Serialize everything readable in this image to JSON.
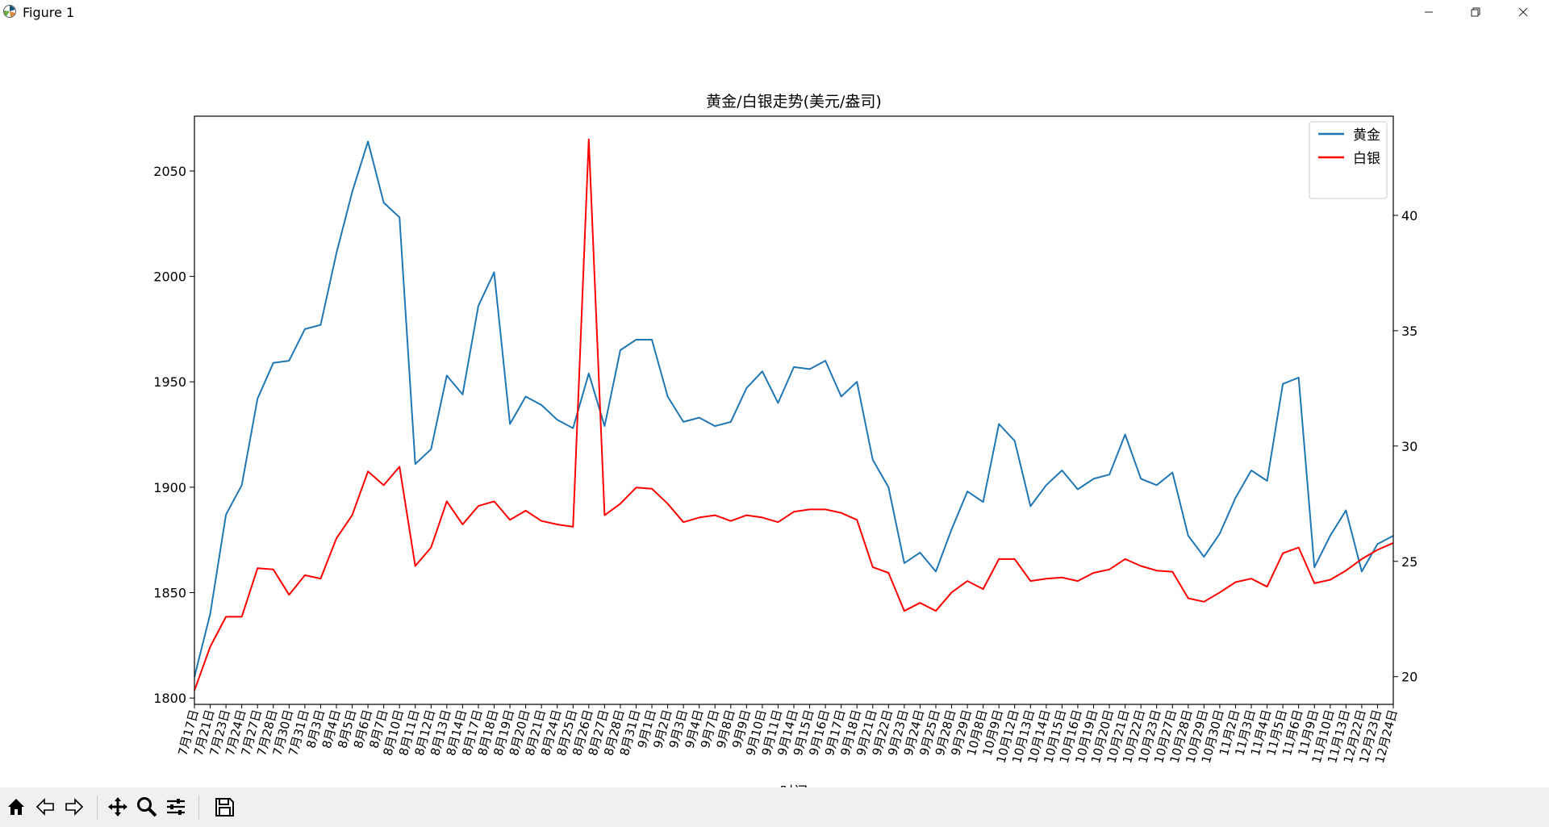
{
  "window": {
    "title": "Figure 1"
  },
  "toolbar": {
    "icons": [
      "home-icon",
      "back-arrow-icon",
      "forward-arrow-icon",
      "pan-icon",
      "zoom-icon",
      "configure-subplots-icon",
      "save-icon"
    ]
  },
  "chart_data": {
    "type": "line",
    "title": "黄金/白银走势(美元/盎司)",
    "xlabel": "时间",
    "ylabel": "",
    "categories": [
      "7月17日",
      "7月21日",
      "7月23日",
      "7月24日",
      "7月27日",
      "7月28日",
      "7月30日",
      "7月31日",
      "8月3日",
      "8月4日",
      "8月5日",
      "8月6日",
      "8月7日",
      "8月10日",
      "8月11日",
      "8月12日",
      "8月13日",
      "8月14日",
      "8月17日",
      "8月18日",
      "8月19日",
      "8月20日",
      "8月21日",
      "8月24日",
      "8月25日",
      "8月26日",
      "8月27日",
      "8月28日",
      "8月31日",
      "9月1日",
      "9月2日",
      "9月3日",
      "9月4日",
      "9月7日",
      "9月8日",
      "9月9日",
      "9月10日",
      "9月11日",
      "9月14日",
      "9月15日",
      "9月16日",
      "9月17日",
      "9月18日",
      "9月21日",
      "9月22日",
      "9月23日",
      "9月24日",
      "9月25日",
      "9月28日",
      "9月29日",
      "10月8日",
      "10月9日",
      "10月12日",
      "10月13日",
      "10月14日",
      "10月15日",
      "10月16日",
      "10月19日",
      "10月20日",
      "10月21日",
      "10月22日",
      "10月23日",
      "10月27日",
      "10月28日",
      "10月29日",
      "10月30日",
      "11月2日",
      "11月3日",
      "11月4日",
      "11月5日",
      "11月6日",
      "11月9日",
      "11月10日",
      "11月13日",
      "12月22日",
      "12月23日",
      "12月24日"
    ],
    "series": [
      {
        "name": "黄金",
        "axis": "left",
        "color": "#1f77b4",
        "values": [
          1810,
          1840,
          1887,
          1901,
          1942,
          1959,
          1960,
          1975,
          1977,
          2011,
          2040,
          2064,
          2035,
          2028,
          1911,
          1918,
          1953,
          1944,
          1986,
          2002,
          1930,
          1943,
          1939,
          1932,
          1928,
          1954,
          1929,
          1965,
          1970,
          1970,
          1943,
          1931,
          1933,
          1929,
          1931,
          1947,
          1955,
          1940,
          1957,
          1956,
          1960,
          1943,
          1950,
          1913,
          1900,
          1864,
          1869,
          1860,
          1880,
          1898,
          1893,
          1930,
          1922,
          1891,
          1901,
          1908,
          1899,
          1904,
          1906,
          1925,
          1904,
          1901,
          1907,
          1877,
          1867,
          1878,
          1895,
          1908,
          1903,
          1949,
          1952,
          1862,
          1877,
          1889,
          1860,
          1873,
          1877
        ]
      },
      {
        "name": "白银",
        "axis": "right",
        "color": "#ff0000",
        "values": [
          19.4,
          21.3,
          22.6,
          22.6,
          24.7,
          24.65,
          23.55,
          24.4,
          24.25,
          26.0,
          27.0,
          28.9,
          28.3,
          29.1,
          24.8,
          25.6,
          27.6,
          26.6,
          27.4,
          27.6,
          26.8,
          27.2,
          26.75,
          26.6,
          26.5,
          43.3,
          27.0,
          27.5,
          28.2,
          28.15,
          27.5,
          26.7,
          26.9,
          27.0,
          26.75,
          27.0,
          26.9,
          26.7,
          27.15,
          27.25,
          27.25,
          27.1,
          26.8,
          24.75,
          24.5,
          22.85,
          23.2,
          22.85,
          23.65,
          24.15,
          23.8,
          25.1,
          25.1,
          24.15,
          24.25,
          24.3,
          24.15,
          24.5,
          24.65,
          25.1,
          24.8,
          24.6,
          24.55,
          23.4,
          23.25,
          23.65,
          24.1,
          24.25,
          23.9,
          25.35,
          25.6,
          24.05,
          24.2,
          24.6,
          25.1,
          25.5,
          25.8
        ]
      }
    ],
    "ylim_left": [
      1797,
      2076
    ],
    "yticks_left": [
      1800,
      1850,
      1900,
      1950,
      2000,
      2050
    ],
    "ylim_right": [
      18.8,
      44.3
    ],
    "yticks_right": [
      20,
      25,
      30,
      35,
      40
    ],
    "legend": {
      "placement": "top-right",
      "entries": [
        "黄金",
        "白银"
      ]
    },
    "grid": false
  }
}
